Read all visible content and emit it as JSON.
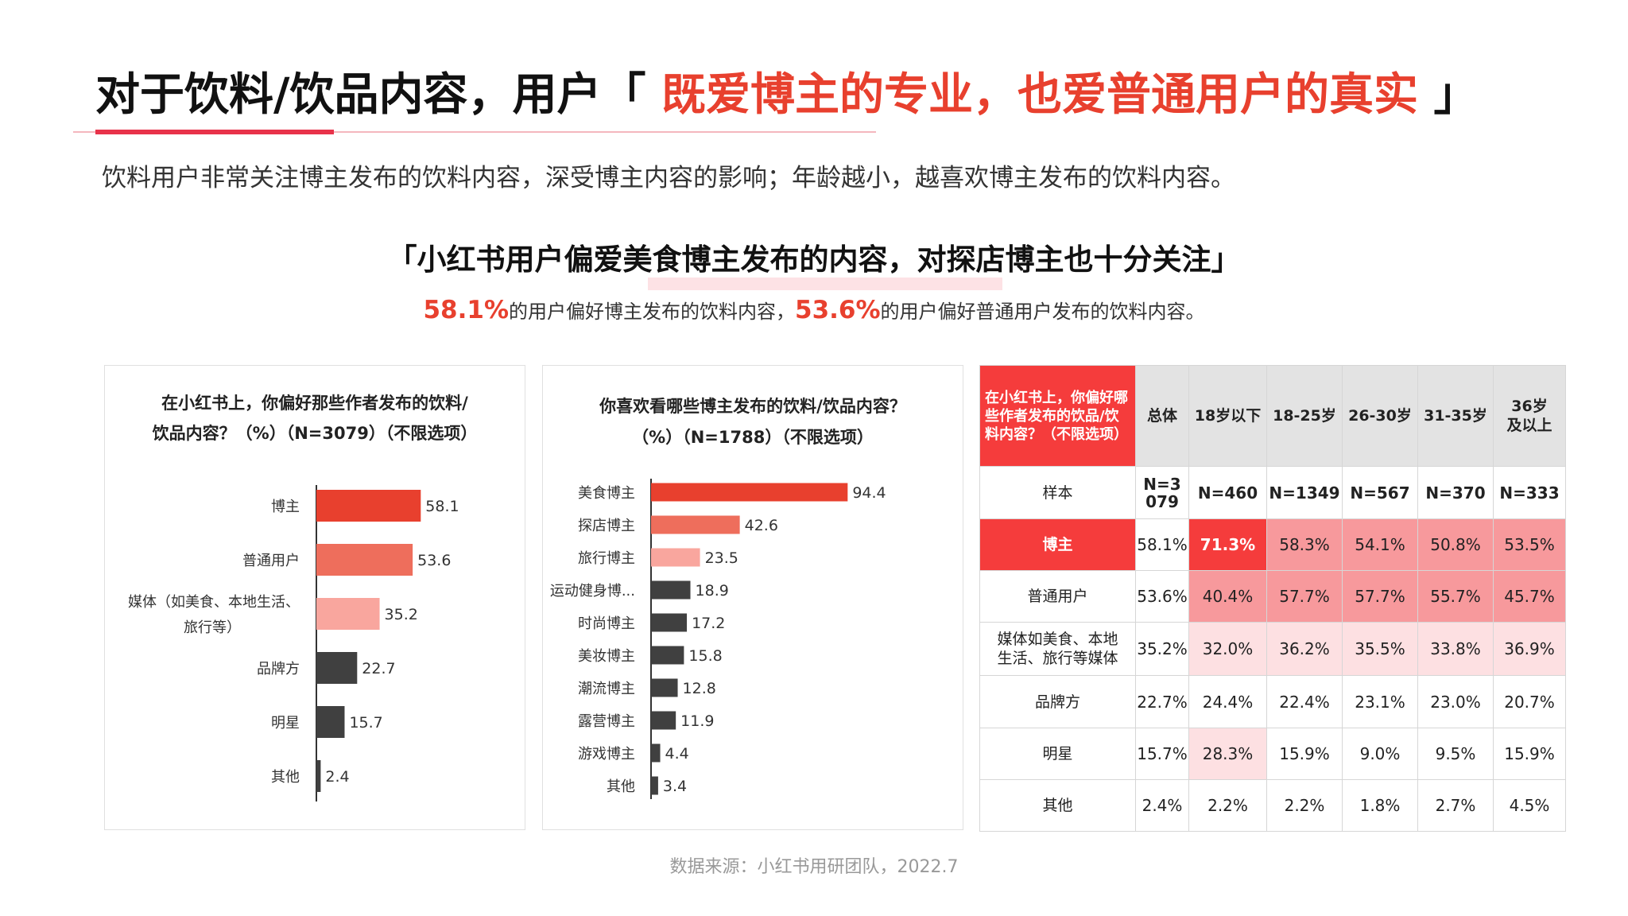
{
  "header": {
    "title_prefix": "对于饮料/饮品内容，用户「 ",
    "title_highlight": "既爱博主的专业，也爱普通用户的真实",
    "title_suffix": " 」",
    "intro": "饮料用户非常关注博主发布的饮料内容，深受博主内容的影响；年龄越小，越喜欢博主发布的饮料内容。",
    "subheadline": "「小红书用户偏爱美食博主发布的内容，对探店博主也十分关注」",
    "key_num_1": "58.1%",
    "key_text_1": "的用户偏好博主发布的饮料内容，",
    "key_num_2": "53.6%",
    "key_text_2": "的用户偏好普通用户发布的饮料内容。"
  },
  "colors": {
    "accent_red": "#e8402e",
    "bar_red": "#e8402e",
    "bar_salmon": "#ee6e5c",
    "bar_pink": "#f9a69e",
    "bar_dark": "#404040",
    "heat_strong": "#f53c3c",
    "heat_medium": "#f7999c",
    "heat_light": "#fde0e2"
  },
  "chart_data": [
    {
      "type": "bar",
      "orientation": "horizontal",
      "title": "在小红书上，你偏好那些作者发布的饮料/饮品内容？（%）（N=3079）（不限选项）",
      "title_lines": [
        "在小红书上，你偏好那些作者发布的饮料/",
        "饮品内容？（%）（N=3079）（不限选项）"
      ],
      "categories": [
        "博主",
        "普通用户",
        "媒体（如美食、本地生活、旅行等）",
        "品牌方",
        "明星",
        "其他"
      ],
      "category_lines": [
        [
          "博主"
        ],
        [
          "普通用户"
        ],
        [
          "媒体（如美食、本地生活、",
          "旅行等）"
        ],
        [
          "品牌方"
        ],
        [
          "明星"
        ],
        [
          "其他"
        ]
      ],
      "values": [
        58.1,
        53.6,
        35.2,
        22.7,
        15.7,
        2.4
      ],
      "value_labels": [
        "58.1",
        "53.6",
        "35.2",
        "22.7",
        "15.7",
        "2.4"
      ],
      "bar_colors": [
        "#e8402e",
        "#ee6e5c",
        "#f9a69e",
        "#404040",
        "#404040",
        "#404040"
      ],
      "xlim": [
        0,
        100
      ],
      "grid": false
    },
    {
      "type": "bar",
      "orientation": "horizontal",
      "title": "你喜欢看哪些博主发布的饮料/饮品内容？（%）（N=1788）（不限选项）",
      "title_lines": [
        "你喜欢看哪些博主发布的饮料/饮品内容？",
        "（%）（N=1788）（不限选项）"
      ],
      "categories": [
        "美食博主",
        "探店博主",
        "旅行博主",
        "运动健身博...",
        "时尚博主",
        "美妆博主",
        "潮流博主",
        "露营博主",
        "游戏博主",
        "其他"
      ],
      "values": [
        94.4,
        42.6,
        23.5,
        18.9,
        17.2,
        15.8,
        12.8,
        11.9,
        4.4,
        3.4
      ],
      "value_labels": [
        "94.4",
        "42.6",
        "23.5",
        "18.9",
        "17.2",
        "15.8",
        "12.8",
        "11.9",
        "4.4",
        "3.4"
      ],
      "bar_colors": [
        "#e8402e",
        "#ee6e5c",
        "#f9a69e",
        "#404040",
        "#404040",
        "#404040",
        "#404040",
        "#404040",
        "#404040",
        "#404040"
      ],
      "xlim": [
        0,
        100
      ],
      "grid": false
    },
    {
      "type": "table",
      "title": "在小红书上，你偏好哪些作者发布的饮品/饮料内容？（不限选项）",
      "header": {
        "question": "在小红书上，你偏好哪些作者发布的饮品/饮料内容？（不限选项）",
        "columns": [
          "总体",
          "18岁以下",
          "18-25岁",
          "26-30岁",
          "31-35岁",
          "36岁及以上"
        ]
      },
      "rows": [
        {
          "label": "样本",
          "values": [
            "N=3079",
            "N=460",
            "N=1349",
            "N=567",
            "N=370",
            "N=333"
          ],
          "levels": [
            0,
            0,
            0,
            0,
            0,
            0
          ]
        },
        {
          "label": "博主",
          "values": [
            "58.1%",
            "71.3%",
            "58.3%",
            "54.1%",
            "50.8%",
            "53.5%"
          ],
          "levels": [
            0,
            3,
            2,
            2,
            2,
            2
          ]
        },
        {
          "label": "普通用户",
          "values": [
            "53.6%",
            "40.4%",
            "57.7%",
            "57.7%",
            "55.7%",
            "45.7%"
          ],
          "levels": [
            0,
            2,
            2,
            2,
            2,
            2
          ]
        },
        {
          "label": "媒体如美食、本地生活、旅行等媒体",
          "values": [
            "35.2%",
            "32.0%",
            "36.2%",
            "35.5%",
            "33.8%",
            "36.9%"
          ],
          "levels": [
            0,
            1,
            1,
            1,
            1,
            1
          ]
        },
        {
          "label": "品牌方",
          "values": [
            "22.7%",
            "24.4%",
            "22.4%",
            "23.1%",
            "23.0%",
            "20.7%"
          ],
          "levels": [
            0,
            0,
            0,
            0,
            0,
            0
          ]
        },
        {
          "label": "明星",
          "values": [
            "15.7%",
            "28.3%",
            "15.9%",
            "9.0%",
            "9.5%",
            "15.9%"
          ],
          "levels": [
            0,
            1,
            0,
            0,
            0,
            0
          ]
        },
        {
          "label": "其他",
          "values": [
            "2.4%",
            "2.2%",
            "2.2%",
            "1.8%",
            "2.7%",
            "4.5%"
          ],
          "levels": [
            0,
            0,
            0,
            0,
            0,
            0
          ]
        }
      ]
    }
  ],
  "footer": {
    "source": "数据来源：小红书用研团队，2022.7"
  }
}
